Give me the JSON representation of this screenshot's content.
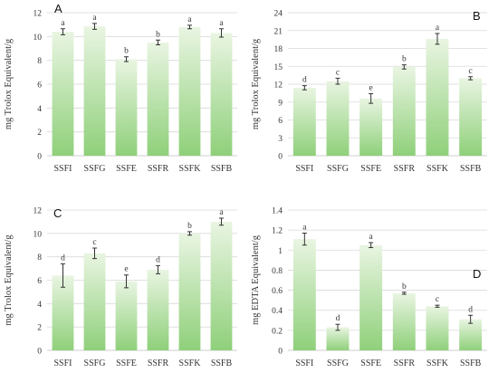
{
  "figure": {
    "bar_gradient": [
      "#e9f5e2",
      "#8fd07a"
    ],
    "text_color": "#333333",
    "grid_color": "#d9d9d9"
  },
  "chart_data": [
    {
      "id": "A",
      "panel_label": "A",
      "type": "bar",
      "ylabel": "mg Trolox Equivalent/g",
      "ylim": [
        0,
        12
      ],
      "yticks": [
        0,
        2,
        4,
        6,
        8,
        10,
        12
      ],
      "grid": true,
      "categories": [
        "SSFI",
        "SSFG",
        "SSFE",
        "SSFR",
        "SSFK",
        "SSFB"
      ],
      "values": [
        10.4,
        10.85,
        8.1,
        9.5,
        10.8,
        10.3
      ],
      "errors": [
        0.25,
        0.25,
        0.2,
        0.2,
        0.15,
        0.35
      ],
      "significance": [
        "a",
        "a",
        "b",
        "b",
        "a",
        "a"
      ]
    },
    {
      "id": "B",
      "panel_label": "B",
      "type": "bar",
      "ylabel": "mg Trolox Equivalent/g",
      "ylim": [
        0,
        24
      ],
      "yticks": [
        0,
        3,
        6,
        9,
        12,
        15,
        18,
        21,
        24
      ],
      "grid": true,
      "categories": [
        "SSFI",
        "SSFG",
        "SSFE",
        "SSFR",
        "SSFK",
        "SSFB"
      ],
      "values": [
        11.4,
        12.5,
        9.6,
        14.9,
        19.6,
        13.0
      ],
      "errors": [
        0.35,
        0.5,
        0.8,
        0.35,
        0.9,
        0.25
      ],
      "significance": [
        "d",
        "c",
        "e",
        "b",
        "a",
        "c"
      ]
    },
    {
      "id": "C",
      "panel_label": "C",
      "type": "bar",
      "ylabel": "mg Trolox Equivalent/g",
      "ylim": [
        0,
        12
      ],
      "yticks": [
        0,
        2,
        4,
        6,
        8,
        10,
        12
      ],
      "grid": true,
      "categories": [
        "SSFI",
        "SSFG",
        "SSFE",
        "SSFR",
        "SSFK",
        "SSFB"
      ],
      "values": [
        6.4,
        8.3,
        5.9,
        6.9,
        10.0,
        11.0
      ],
      "errors": [
        1.0,
        0.45,
        0.55,
        0.35,
        0.15,
        0.3
      ],
      "significance": [
        "d",
        "c",
        "e",
        "d",
        "b",
        "a"
      ]
    },
    {
      "id": "D",
      "panel_label": "D",
      "type": "bar",
      "ylabel": "mg EDTA Equivalent/g",
      "ylim": [
        0,
        1.4
      ],
      "yticks": [
        0,
        0.2,
        0.4,
        0.6,
        0.8,
        1,
        1.2,
        1.4
      ],
      "grid": true,
      "categories": [
        "SSFI",
        "SSFG",
        "SSFE",
        "SSFR",
        "SSFK",
        "SSFB"
      ],
      "values": [
        1.11,
        0.23,
        1.05,
        0.57,
        0.44,
        0.31
      ],
      "errors": [
        0.06,
        0.03,
        0.025,
        0.01,
        0.01,
        0.04
      ],
      "significance": [
        "a",
        "d",
        "a",
        "b",
        "c",
        "d"
      ]
    }
  ]
}
